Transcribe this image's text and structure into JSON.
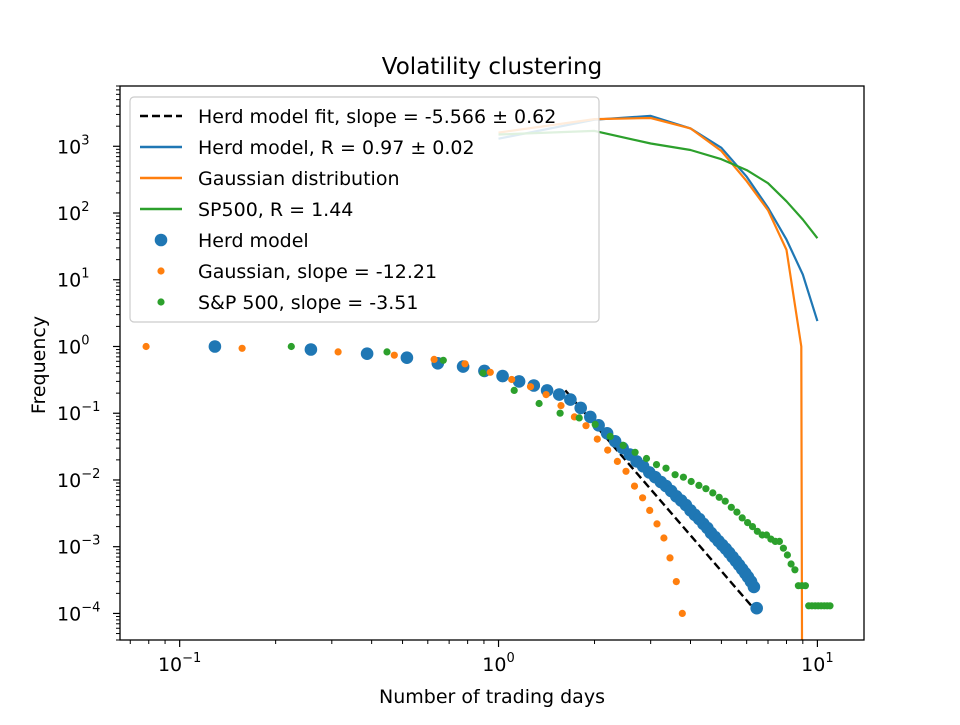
{
  "chart_data": {
    "type": "scatter",
    "title": "Volatility clustering",
    "xlabel": "Number of trading days",
    "ylabel": "Frequency",
    "xscale": "log",
    "yscale": "log",
    "xlim": [
      0.065,
      14
    ],
    "ylim": [
      4e-05,
      8000
    ],
    "grid": false,
    "legend_position": "top-left",
    "x_ticks": [
      {
        "value": 0.1,
        "base": "10",
        "exp": "−1"
      },
      {
        "value": 1,
        "base": "10",
        "exp": "0"
      },
      {
        "value": 10,
        "base": "10",
        "exp": "1"
      }
    ],
    "y_ticks": [
      {
        "value": 0.0001,
        "base": "10",
        "exp": "−4"
      },
      {
        "value": 0.001,
        "base": "10",
        "exp": "−3"
      },
      {
        "value": 0.01,
        "base": "10",
        "exp": "−2"
      },
      {
        "value": 0.1,
        "base": "10",
        "exp": "−1"
      },
      {
        "value": 1,
        "base": "10",
        "exp": "0"
      },
      {
        "value": 10,
        "base": "10",
        "exp": "1"
      },
      {
        "value": 100,
        "base": "10",
        "exp": "2"
      },
      {
        "value": 1000,
        "base": "10",
        "exp": "3"
      }
    ],
    "series": [
      {
        "name": "Herd model fit, slope = -5.566 ± 0.62",
        "kind": "line",
        "style": "dashed",
        "color": "#000000",
        "x": [
          1.62,
          6.4
        ],
        "y": [
          0.22,
          0.00011
        ]
      },
      {
        "name": "Herd model, R = 0.97 ± 0.02",
        "kind": "line",
        "style": "solid",
        "color": "#1f77b4",
        "x": [
          1.0,
          2.0,
          3.0,
          4.0,
          5.0,
          6.0,
          7.0,
          8.0,
          9.0,
          10.0
        ],
        "y": [
          1300,
          2500,
          2850,
          1850,
          950,
          350,
          120,
          40,
          12,
          2.4
        ]
      },
      {
        "name": "Gaussian distribution",
        "kind": "line",
        "style": "solid",
        "color": "#ff7f0e",
        "x": [
          1.0,
          2.0,
          3.0,
          4.0,
          5.0,
          6.0,
          7.0,
          8.0,
          8.9,
          8.95
        ],
        "y": [
          1600,
          2550,
          2650,
          1850,
          850,
          300,
          110,
          28,
          1.0,
          4e-05
        ]
      },
      {
        "name": "SP500, R = 1.44",
        "kind": "line",
        "style": "solid",
        "color": "#2ca02c",
        "x": [
          1.0,
          2.0,
          3.0,
          4.0,
          5.0,
          6.0,
          7.0,
          8.0,
          9.0,
          10.0
        ],
        "y": [
          1500,
          1700,
          1100,
          880,
          640,
          440,
          280,
          150,
          80,
          42
        ]
      },
      {
        "name": "Herd model",
        "kind": "scatter",
        "color": "#1f77b4",
        "size": "large",
        "x": [
          0.129,
          0.258,
          0.387,
          0.516,
          0.645,
          0.774,
          0.903,
          1.03,
          1.16,
          1.29,
          1.42,
          1.55,
          1.68,
          1.81,
          1.94,
          2.06,
          2.19,
          2.32,
          2.45,
          2.58,
          2.71,
          2.84,
          2.97,
          3.1,
          3.23,
          3.35,
          3.48,
          3.61,
          3.74,
          3.87,
          4.0,
          4.13,
          4.26,
          4.39,
          4.52,
          4.64,
          4.77,
          4.9,
          5.03,
          5.16,
          5.29,
          5.42,
          5.55,
          5.68,
          5.81,
          5.94,
          6.06,
          6.19,
          6.32,
          6.45
        ],
        "y": [
          1.0,
          0.9,
          0.78,
          0.68,
          0.56,
          0.5,
          0.43,
          0.36,
          0.3,
          0.26,
          0.22,
          0.19,
          0.16,
          0.12,
          0.088,
          0.066,
          0.05,
          0.038,
          0.03,
          0.024,
          0.019,
          0.016,
          0.013,
          0.011,
          0.0093,
          0.0081,
          0.0068,
          0.0057,
          0.0049,
          0.0042,
          0.0035,
          0.003,
          0.0026,
          0.0022,
          0.0019,
          0.0016,
          0.0014,
          0.00121,
          0.00106,
          0.00093,
          0.00081,
          0.0007,
          0.00061,
          0.00053,
          0.00046,
          0.0004,
          0.00035,
          0.0003,
          0.00025,
          0.00012
        ]
      },
      {
        "name": "Gaussian, slope = -12.21",
        "kind": "scatter",
        "color": "#ff7f0e",
        "size": "small",
        "x": [
          0.0785,
          0.157,
          0.314,
          0.471,
          0.628,
          0.785,
          0.942,
          1.1,
          1.26,
          1.41,
          1.57,
          1.73,
          1.88,
          2.04,
          2.2,
          2.36,
          2.51,
          2.67,
          2.83,
          2.98,
          3.14,
          3.3,
          3.45,
          3.61,
          3.77
        ],
        "y": [
          1.0,
          0.94,
          0.83,
          0.74,
          0.64,
          0.55,
          0.41,
          0.32,
          0.25,
          0.19,
          0.13,
          0.088,
          0.065,
          0.041,
          0.028,
          0.019,
          0.0135,
          0.0081,
          0.0054,
          0.0035,
          0.0022,
          0.00135,
          0.00068,
          0.0003,
          0.0001
        ]
      },
      {
        "name": "S&P 500, slope = -3.51",
        "kind": "scatter",
        "color": "#2ca02c",
        "size": "small",
        "x": [
          0.224,
          0.447,
          0.671,
          0.894,
          1.12,
          1.34,
          1.56,
          1.79,
          2.01,
          2.24,
          2.46,
          2.68,
          2.91,
          3.13,
          3.35,
          3.58,
          3.8,
          4.02,
          4.25,
          4.47,
          4.7,
          4.92,
          5.14,
          5.37,
          5.59,
          5.81,
          6.04,
          6.26,
          6.48,
          6.71,
          6.93,
          7.15,
          7.38,
          7.6,
          7.82,
          8.05,
          8.27,
          8.5,
          8.72,
          8.94,
          9.17,
          9.39,
          9.61,
          9.84,
          10.06,
          10.28,
          10.51,
          10.73,
          10.95
        ],
        "y": [
          1.0,
          0.83,
          0.62,
          0.4,
          0.22,
          0.14,
          0.1,
          0.085,
          0.068,
          0.045,
          0.033,
          0.026,
          0.021,
          0.017,
          0.015,
          0.012,
          0.011,
          0.0095,
          0.0083,
          0.0074,
          0.0064,
          0.0055,
          0.0048,
          0.0039,
          0.0033,
          0.0027,
          0.0023,
          0.002,
          0.0017,
          0.0015,
          0.0015,
          0.0013,
          0.0012,
          0.0012,
          0.00095,
          0.00075,
          0.00055,
          0.00045,
          0.00026,
          0.00026,
          0.00026,
          0.00013,
          0.00013,
          0.00013,
          0.00013,
          0.00013,
          0.00013,
          0.00013,
          0.00013
        ]
      }
    ]
  }
}
